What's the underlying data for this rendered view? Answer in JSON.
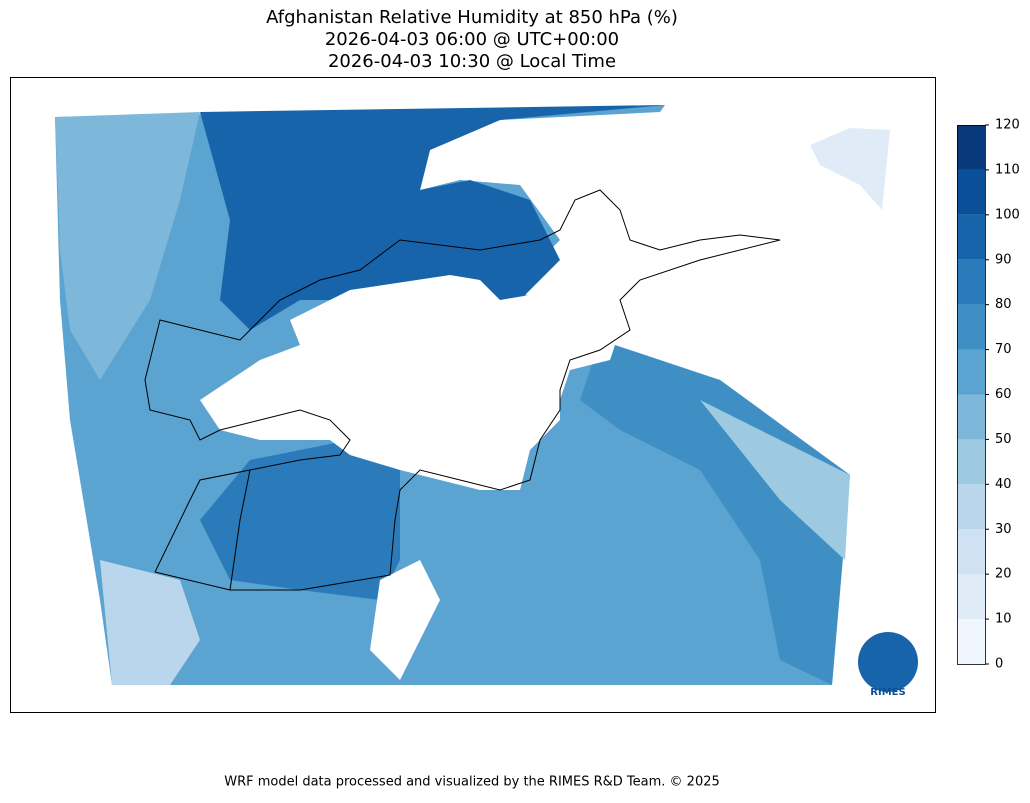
{
  "title_lines": [
    "Afghanistan Relative Humidity at 850 hPa (%)",
    "2026-04-03 06:00 @ UTC+00:00",
    "2026-04-03 10:30 @ Local Time"
  ],
  "colorbar": {
    "ticks": [
      0,
      10,
      20,
      30,
      40,
      50,
      60,
      70,
      80,
      90,
      100,
      110,
      120
    ],
    "colors": [
      "#f0f6fd",
      "#dfebf7",
      "#cfe1f2",
      "#b9d6ec",
      "#9dcae1",
      "#7db8da",
      "#5ba3d0",
      "#3f8fc5",
      "#2b7bba",
      "#1864aa",
      "#0a4f97",
      "#08397a"
    ]
  },
  "logo_text": "RIMES",
  "footer": "WRF model data processed and visualized by the RIMES R&D Team. © 2025"
}
